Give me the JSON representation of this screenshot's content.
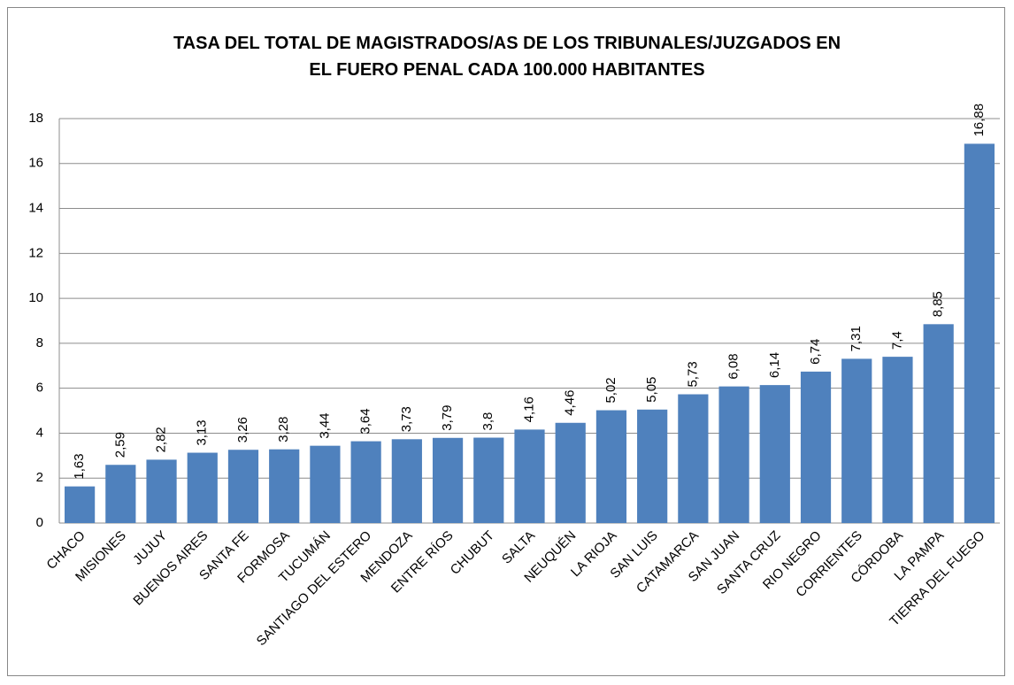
{
  "chart_data": {
    "type": "bar",
    "title": "TASA DEL TOTAL DE MAGISTRADOS/AS DE LOS TRIBUNALES/JUZGADOS EN EL FUERO PENAL CADA 100.000 HABITANTES",
    "categories": [
      "CHACO",
      "MISIONES",
      "JUJUY",
      "BUENOS AIRES",
      "SANTA FE",
      "FORMOSA",
      "TUCUMÁN",
      "SANTIAGO DEL ESTERO",
      "MENDOZA",
      "ENTRE RÍOS",
      "CHUBUT",
      "SALTA",
      "NEUQUÉN",
      "LA RIOJA",
      "SAN LUIS",
      "CATAMARCA",
      "SAN JUAN",
      "SANTA CRUZ",
      "RIO NEGRO",
      "CORRIENTES",
      "CÓRDOBA",
      "LA PAMPA",
      "TIERRA DEL FUEGO"
    ],
    "values": [
      1.63,
      2.59,
      2.82,
      3.13,
      3.26,
      3.28,
      3.44,
      3.64,
      3.73,
      3.79,
      3.8,
      4.16,
      4.46,
      5.02,
      5.05,
      5.73,
      6.08,
      6.14,
      6.74,
      7.31,
      7.4,
      8.85,
      16.88
    ],
    "value_labels": [
      "1,63",
      "2,59",
      "2,82",
      "3,13",
      "3,26",
      "3,28",
      "3,44",
      "3,64",
      "3,73",
      "3,79",
      "3,8",
      "4,16",
      "4,46",
      "5,02",
      "5,05",
      "5,73",
      "6,08",
      "6,14",
      "6,74",
      "7,31",
      "7,4",
      "8,85",
      "16,88"
    ],
    "color": "#4f81bd",
    "ylim": [
      0,
      18
    ],
    "yticks": [
      0,
      2,
      4,
      6,
      8,
      10,
      12,
      14,
      16,
      18
    ],
    "grid": true
  }
}
